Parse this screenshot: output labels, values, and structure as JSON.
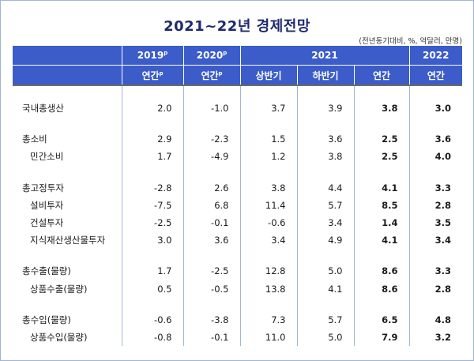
{
  "title": "2021~22년 경제전망",
  "unit_note": "(전년동기대비, %, 억달러, 만명)",
  "header": {
    "col_2019": "2019",
    "col_2019_sup": "p",
    "col_2020": "2020",
    "col_2020_sup": "p",
    "col_2021": "2021",
    "col_2022": "2022",
    "sub_annual_2019": "연간",
    "sub_annual_2019_sup": "p",
    "sub_annual_2020": "연간",
    "sub_annual_2020_sup": "p",
    "sub_h1": "상반기",
    "sub_h2": "하반기",
    "sub_annual_2021": "연간",
    "sub_annual_2022": "연간"
  },
  "rows": [
    {
      "label": "국내총생산",
      "v2019": "2.0",
      "v2020": "-1.0",
      "h1": "3.7",
      "h2": "3.9",
      "y2021": "3.8",
      "y2022": "3.0"
    },
    {
      "label": "총소비",
      "v2019": "2.9",
      "v2020": "-2.3",
      "h1": "1.5",
      "h2": "3.6",
      "y2021": "2.5",
      "y2022": "3.6"
    },
    {
      "label": "민간소비",
      "v2019": "1.7",
      "v2020": "-4.9",
      "h1": "1.2",
      "h2": "3.8",
      "y2021": "2.5",
      "y2022": "4.0"
    },
    {
      "label": "총고정투자",
      "v2019": "-2.8",
      "v2020": "2.6",
      "h1": "3.8",
      "h2": "4.4",
      "y2021": "4.1",
      "y2022": "3.3"
    },
    {
      "label": "설비투자",
      "v2019": "-7.5",
      "v2020": "6.8",
      "h1": "11.4",
      "h2": "5.7",
      "y2021": "8.5",
      "y2022": "2.8"
    },
    {
      "label": "건설투자",
      "v2019": "-2.5",
      "v2020": "-0.1",
      "h1": "-0.6",
      "h2": "3.4",
      "y2021": "1.4",
      "y2022": "3.5"
    },
    {
      "label": "지식재산생산물투자",
      "v2019": "3.0",
      "v2020": "3.6",
      "h1": "3.4",
      "h2": "4.9",
      "y2021": "4.1",
      "y2022": "3.4"
    },
    {
      "label": "총수출(물량)",
      "v2019": "1.7",
      "v2020": "-2.5",
      "h1": "12.8",
      "h2": "5.0",
      "y2021": "8.6",
      "y2022": "3.3"
    },
    {
      "label": "상품수출(물량)",
      "v2019": "0.5",
      "v2020": "-0.5",
      "h1": "13.8",
      "h2": "4.1",
      "y2021": "8.6",
      "y2022": "2.8"
    },
    {
      "label": "총수입(물량)",
      "v2019": "-0.6",
      "v2020": "-3.8",
      "h1": "7.3",
      "h2": "5.7",
      "y2021": "6.5",
      "y2022": "4.8"
    },
    {
      "label": "상품수입(물량)",
      "v2019": "-0.8",
      "v2020": "-0.1",
      "h1": "11.0",
      "h2": "5.0",
      "y2021": "7.9",
      "y2022": "3.2"
    }
  ]
}
